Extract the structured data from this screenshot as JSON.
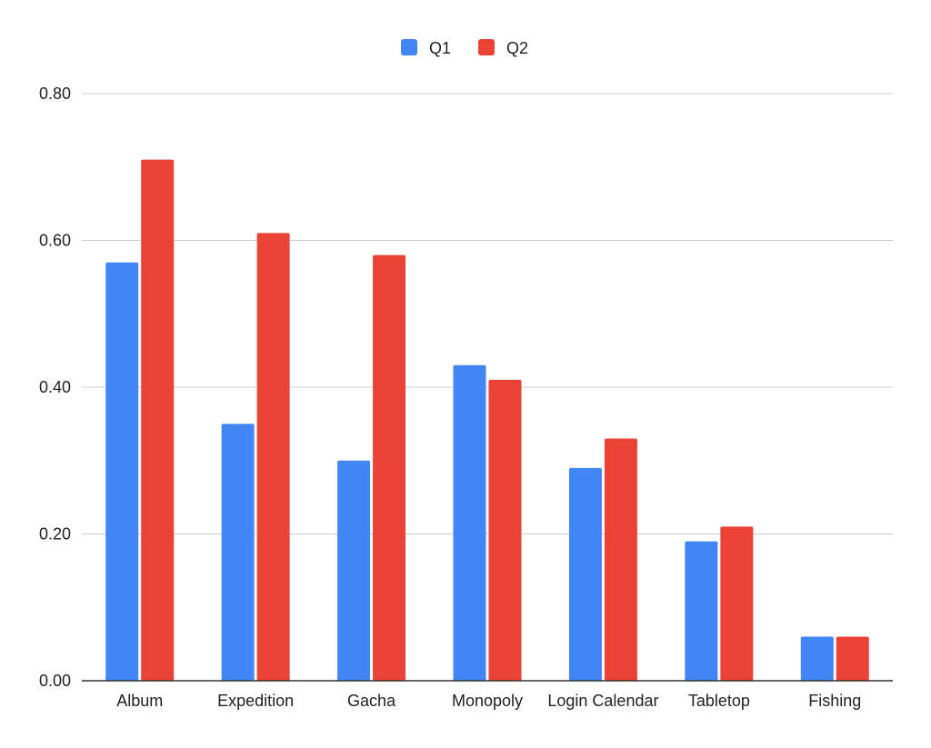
{
  "chart_data": {
    "type": "bar",
    "title": "",
    "xlabel": "",
    "ylabel": "",
    "categories": [
      "Album",
      "Expedition",
      "Gacha",
      "Monopoly",
      "Login Calendar",
      "Tabletop",
      "Fishing"
    ],
    "series": [
      {
        "name": "Q1",
        "color": "#4285f4",
        "values": [
          0.57,
          0.35,
          0.3,
          0.43,
          0.29,
          0.19,
          0.06
        ]
      },
      {
        "name": "Q2",
        "color": "#ea4335",
        "values": [
          0.71,
          0.61,
          0.58,
          0.41,
          0.33,
          0.21,
          0.06
        ]
      }
    ],
    "ylim": [
      0,
      0.8
    ],
    "yticks": [
      0,
      0.2,
      0.4,
      0.6,
      0.8
    ],
    "ytick_labels": [
      "0.00",
      "0.20",
      "0.40",
      "0.60",
      "0.80"
    ],
    "grid": true,
    "legend_position": "top-center"
  }
}
